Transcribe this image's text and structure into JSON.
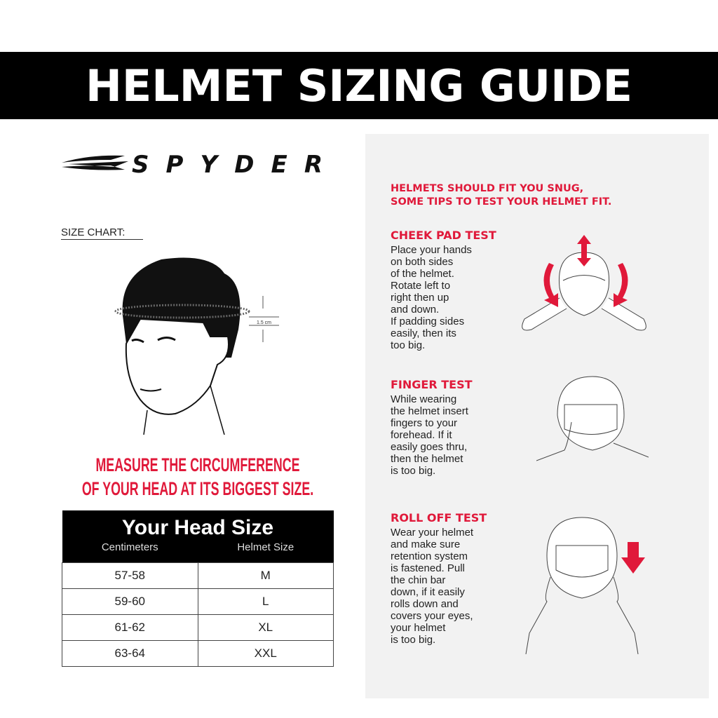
{
  "title": "HELMET SIZING GUIDE",
  "brand": "SPYDER",
  "size_chart_label": "SIZE CHART:",
  "measure_label": "1.5 cm",
  "measure_lines": [
    "MEASURE THE CIRCUMFERENCE",
    "OF YOUR HEAD AT ITS BIGGEST SIZE."
  ],
  "table": {
    "title": "Your Head Size",
    "columns": [
      "Centimeters",
      "Helmet Size"
    ],
    "rows": [
      [
        "57-58",
        "M"
      ],
      [
        "59-60",
        "L"
      ],
      [
        "61-62",
        "XL"
      ],
      [
        "63-64",
        "XXL"
      ]
    ]
  },
  "tips": {
    "intro": [
      "HELMETS SHOULD FIT YOU SNUG,",
      "SOME TIPS TO TEST YOUR HELMET FIT."
    ],
    "tests": [
      {
        "title": "CHEEK PAD TEST",
        "text": "Place your hands\non both sides\nof the helmet.\nRotate left to\nright then up\nand down.\nIf padding sides\neasily, then its\ntoo big."
      },
      {
        "title": "FINGER TEST",
        "text": "While wearing\nthe helmet insert\nfingers to your\nforehead. If it\neasily goes thru,\nthen the helmet\nis too big."
      },
      {
        "title": "ROLL OFF TEST",
        "text": "Wear your helmet\nand make sure\nretention system\nis fastened. Pull\nthe chin bar\ndown, if it easily\nrolls down and\ncovers your eyes,\nyour helmet\nis too big."
      }
    ]
  },
  "colors": {
    "accent": "#e0193a",
    "banner": "#000000",
    "panel": "#f2f2f2"
  }
}
